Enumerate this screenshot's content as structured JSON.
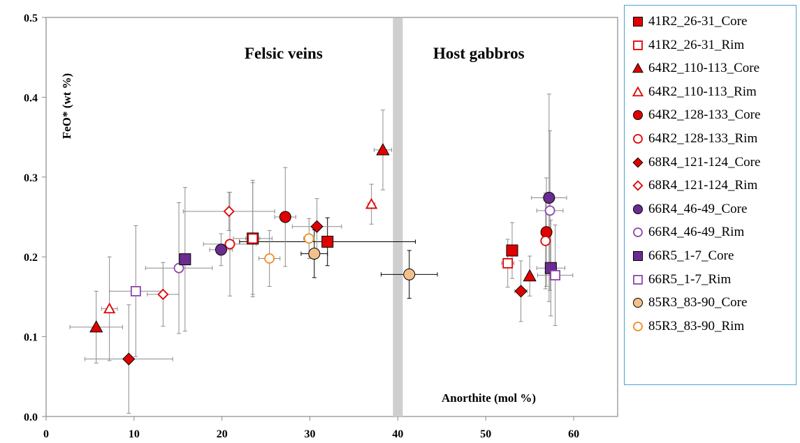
{
  "chart_data": {
    "type": "scatter",
    "title": "",
    "xlabel": "Anorthite (mol %)",
    "ylabel": "FeO* (wt %)",
    "xlim": [
      0,
      65
    ],
    "ylim": [
      0,
      0.5
    ],
    "x_ticks": [
      0,
      10,
      20,
      30,
      40,
      50,
      60
    ],
    "y_ticks": [
      0.0,
      0.1,
      0.2,
      0.3,
      0.4,
      0.5
    ],
    "x_tick_labels": [
      "0",
      "10",
      "20",
      "30",
      "40",
      "50",
      "60"
    ],
    "y_tick_labels": [
      "0.0",
      "0.1",
      "0.2",
      "0.3",
      "0.4",
      "0.5"
    ],
    "grid": false,
    "legend_position": "right",
    "divider_x": 40,
    "annotations": [
      "Felsic veins",
      "Host gabbros"
    ],
    "series": [
      {
        "name": "41R2_26-31_Core",
        "marker": "square",
        "fill": "#e00000",
        "stroke": "#000000",
        "points": [
          {
            "x": 23.5,
            "y": 0.223,
            "xerr": 0.8,
            "yerr": 0.07
          },
          {
            "x": 32,
            "y": 0.219,
            "xerr": 10,
            "yerr": 0.03
          },
          {
            "x": 53,
            "y": 0.208,
            "xerr": 0.6,
            "yerr": 0.035
          }
        ]
      },
      {
        "name": "41R2_26-31_Rim",
        "marker": "square",
        "fill": "#ffffff",
        "stroke": "#e00000",
        "points": [
          {
            "x": 23.5,
            "y": 0.223,
            "xerr": 2.2,
            "yerr": 0.073
          },
          {
            "x": 52.5,
            "y": 0.192,
            "xerr": 0.7,
            "yerr": 0.03
          }
        ]
      },
      {
        "name": "64R2_110-113_Core",
        "marker": "triangle",
        "fill": "#e00000",
        "stroke": "#000000",
        "points": [
          {
            "x": 5.7,
            "y": 0.112,
            "xerr": 3.0,
            "yerr": 0.045
          },
          {
            "x": 38.3,
            "y": 0.334,
            "xerr": 1.0,
            "yerr": 0.05
          },
          {
            "x": 55,
            "y": 0.176,
            "xerr": 0.3,
            "yerr": 0.025
          }
        ]
      },
      {
        "name": "64R2_110-113_Rim",
        "marker": "triangle",
        "fill": "#ffffff",
        "stroke": "#e00000",
        "points": [
          {
            "x": 7.2,
            "y": 0.135,
            "xerr": 0.9,
            "yerr": 0.065
          },
          {
            "x": 37,
            "y": 0.266,
            "xerr": 0.4,
            "yerr": 0.025
          }
        ]
      },
      {
        "name": "64R2_128-133_Core",
        "marker": "circle",
        "fill": "#e00000",
        "stroke": "#000000",
        "points": [
          {
            "x": 27.2,
            "y": 0.25,
            "xerr": 1.2,
            "yerr": 0.062
          },
          {
            "x": 56.9,
            "y": 0.231,
            "xerr": 0.5,
            "yerr": 0.068
          }
        ]
      },
      {
        "name": "64R2_128-133_Rim",
        "marker": "circle",
        "fill": "#ffffff",
        "stroke": "#e00000",
        "points": [
          {
            "x": 20.9,
            "y": 0.216,
            "xerr": 3.0,
            "yerr": 0.065
          },
          {
            "x": 56.8,
            "y": 0.22,
            "xerr": 0.3,
            "yerr": 0.06
          }
        ]
      },
      {
        "name": "68R4_121-124_Core",
        "marker": "diamond",
        "fill": "#e00000",
        "stroke": "#000000",
        "points": [
          {
            "x": 9.4,
            "y": 0.072,
            "xerr": 5.0,
            "yerr": 0.068
          },
          {
            "x": 30.8,
            "y": 0.238,
            "xerr": 2.8,
            "yerr": 0.035
          },
          {
            "x": 54,
            "y": 0.157,
            "xerr": 0.7,
            "yerr": 0.038
          }
        ]
      },
      {
        "name": "68R4_121-124_Rim",
        "marker": "diamond",
        "fill": "#ffffff",
        "stroke": "#e00000",
        "points": [
          {
            "x": 13.3,
            "y": 0.153,
            "xerr": 1.8,
            "yerr": 0.04
          },
          {
            "x": 20.8,
            "y": 0.257,
            "xerr": 5.2,
            "yerr": 0.024
          }
        ]
      },
      {
        "name": "66R4_46-49_Core",
        "marker": "circle",
        "fill": "#6a2c91",
        "stroke": "#000000",
        "points": [
          {
            "x": 19.9,
            "y": 0.209,
            "xerr": 1.3,
            "yerr": 0.02
          },
          {
            "x": 57.2,
            "y": 0.274,
            "xerr": 2.0,
            "yerr": 0.13
          }
        ]
      },
      {
        "name": "66R4_46-49_Rim",
        "marker": "circle",
        "fill": "#ffffff",
        "stroke": "#8e44ad",
        "points": [
          {
            "x": 15.1,
            "y": 0.186,
            "xerr": 3.8,
            "yerr": 0.082
          },
          {
            "x": 57.3,
            "y": 0.258,
            "xerr": 1.5,
            "yerr": 0.1
          }
        ]
      },
      {
        "name": "66R5_1-7_Core",
        "marker": "square",
        "fill": "#6a2c91",
        "stroke": "#000000",
        "points": [
          {
            "x": 15.8,
            "y": 0.197,
            "xerr": 0.4,
            "yerr": 0.09
          },
          {
            "x": 57.4,
            "y": 0.186,
            "xerr": 1.6,
            "yerr": 0.06
          }
        ]
      },
      {
        "name": "66R5_1-7_Rim",
        "marker": "square",
        "fill": "#ffffff",
        "stroke": "#8e44ad",
        "points": [
          {
            "x": 10.2,
            "y": 0.157,
            "xerr": 3.0,
            "yerr": 0.082
          },
          {
            "x": 57.9,
            "y": 0.177,
            "xerr": 2.0,
            "yerr": 0.063
          }
        ]
      },
      {
        "name": "85R3_83-90_Core",
        "marker": "circle",
        "fill": "#f4c08a",
        "stroke": "#000000",
        "points": [
          {
            "x": 30.5,
            "y": 0.204,
            "xerr": 1.5,
            "yerr": 0.03
          },
          {
            "x": 41.3,
            "y": 0.178,
            "xerr": 3.2,
            "yerr": 0.03
          }
        ]
      },
      {
        "name": "85R3_83-90_Rim",
        "marker": "circle",
        "fill": "#ffffff",
        "stroke": "#f28b1d",
        "points": [
          {
            "x": 25.4,
            "y": 0.198,
            "xerr": 1.2,
            "yerr": 0.035
          },
          {
            "x": 29.9,
            "y": 0.223,
            "xerr": 0.6,
            "yerr": 0.025
          }
        ]
      }
    ]
  }
}
